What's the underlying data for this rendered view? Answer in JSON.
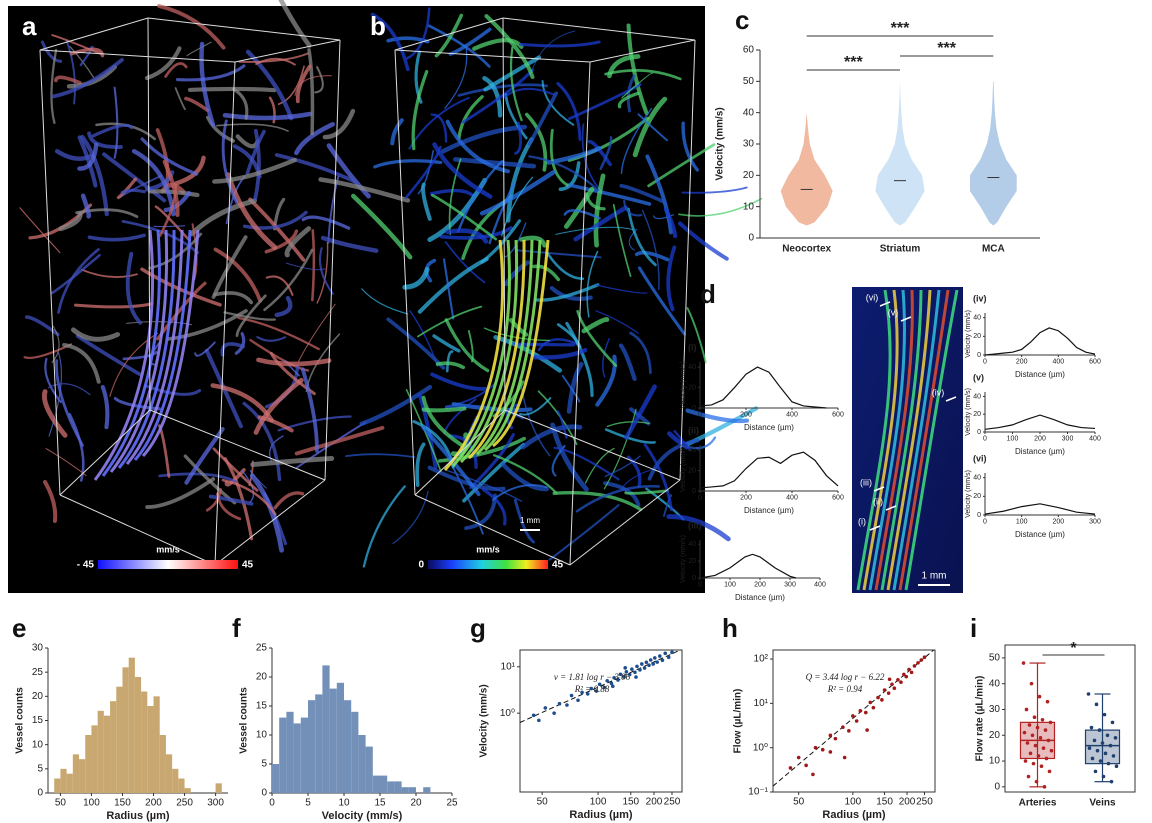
{
  "panel_labels": [
    "a",
    "b",
    "c",
    "d",
    "e",
    "f",
    "g",
    "h",
    "i"
  ],
  "images": [
    {
      "colorbar": {
        "min_label": "- 45",
        "unit": "mm/s",
        "max_label": "45"
      }
    },
    {
      "colorbar": {
        "min_label": "0",
        "unit": "mm/s",
        "max_label": "45"
      },
      "scale_bar": "1 mm"
    },
    {
      "labels": [
        "(vi)",
        "(v)",
        "(iv)",
        "(iii)",
        "(ii)",
        "(i)"
      ],
      "scale_bar": "1 mm"
    }
  ],
  "chart_data": [
    {
      "type": "violin",
      "y_label": "Velocity (mm/s)",
      "categories": [
        "Neocortex",
        "Striatum",
        "MCA"
      ],
      "colors": [
        "#f0b9a0",
        "#cfe3f6",
        "#b3cde8"
      ],
      "medians": [
        15.5,
        18.3,
        19.3
      ],
      "density_y": [
        4,
        5,
        10,
        15,
        20,
        25,
        30,
        35,
        40,
        45,
        50
      ],
      "densities": [
        [
          0,
          0.3,
          0.8,
          1,
          0.7,
          0.3,
          0.12,
          0.05,
          0,
          0,
          0
        ],
        [
          0,
          0.2,
          0.6,
          0.95,
          0.85,
          0.45,
          0.2,
          0.1,
          0.05,
          0.02,
          0
        ],
        [
          0,
          0.15,
          0.5,
          0.9,
          0.9,
          0.5,
          0.25,
          0.12,
          0.06,
          0.03,
          0.01
        ]
      ],
      "significance": [
        "***",
        "***",
        "***"
      ],
      "ylim": [
        0,
        60
      ],
      "yticks": [
        0,
        10,
        20,
        30,
        40,
        50,
        60
      ]
    },
    {
      "type": "line",
      "title": "(i)",
      "y_label": "Velocity (mm/s)",
      "x_label": "Distance (µm)",
      "x": [
        0,
        50,
        100,
        150,
        200,
        250,
        300,
        350,
        400,
        450,
        500,
        550
      ],
      "values": [
        2,
        3,
        8,
        20,
        33,
        40,
        35,
        20,
        6,
        2,
        1,
        0
      ],
      "xlim": [
        0,
        600
      ],
      "xticks": [
        0,
        200,
        400,
        600
      ],
      "ylim": [
        0,
        45
      ],
      "yticks": [
        0,
        20,
        40
      ]
    },
    {
      "type": "line",
      "title": "(ii)",
      "y_label": "Velocity (mm/s)",
      "x_label": "Distance (µm)",
      "x": [
        0,
        50,
        100,
        150,
        200,
        250,
        300,
        350,
        400,
        450,
        500,
        550,
        600
      ],
      "values": [
        3,
        4,
        5,
        10,
        22,
        32,
        33,
        27,
        35,
        38,
        30,
        15,
        5
      ],
      "xlim": [
        0,
        600
      ],
      "xticks": [
        0,
        200,
        400,
        600
      ],
      "ylim": [
        0,
        45
      ],
      "yticks": [
        0,
        20,
        40
      ]
    },
    {
      "type": "line",
      "title": "(iii)",
      "y_label": "Velocity (mm/s)",
      "x_label": "Distance (µm)",
      "x": [
        0,
        50,
        100,
        150,
        175,
        200,
        250,
        300,
        320
      ],
      "values": [
        0,
        3,
        12,
        25,
        28,
        25,
        12,
        2,
        0
      ],
      "xlim": [
        0,
        400
      ],
      "xticks": [
        0,
        100,
        200,
        300,
        400
      ],
      "ylim": [
        0,
        45
      ],
      "yticks": [
        0,
        20,
        40
      ]
    },
    {
      "type": "line",
      "title": "(iv)",
      "y_label": "Velocity (mm/s)",
      "x_label": "Distance (µm)",
      "x": [
        0,
        50,
        100,
        150,
        200,
        250,
        300,
        350,
        400,
        450,
        500,
        550,
        600
      ],
      "values": [
        0,
        1,
        2,
        3,
        6,
        14,
        24,
        29,
        26,
        18,
        8,
        3,
        1
      ],
      "xlim": [
        0,
        600
      ],
      "xticks": [
        0,
        200,
        400,
        600
      ],
      "ylim": [
        0,
        45
      ],
      "yticks": [
        0,
        20,
        40
      ]
    },
    {
      "type": "line",
      "title": "(v)",
      "y_label": "Velocity (mm/s)",
      "x_label": "Distance (µm)",
      "x": [
        0,
        50,
        100,
        150,
        200,
        250,
        300,
        350,
        400
      ],
      "values": [
        3,
        5,
        8,
        14,
        19,
        14,
        8,
        5,
        4
      ],
      "xlim": [
        0,
        400
      ],
      "xticks": [
        0,
        100,
        200,
        300,
        400
      ],
      "ylim": [
        0,
        45
      ],
      "yticks": [
        0,
        20,
        40
      ]
    },
    {
      "type": "line",
      "title": "(vi)",
      "y_label": "Velocity (mm/s)",
      "x_label": "Distance (µm)",
      "x": [
        0,
        50,
        100,
        150,
        200,
        250,
        300
      ],
      "values": [
        1,
        4,
        9,
        12,
        8,
        3,
        1
      ],
      "xlim": [
        0,
        300
      ],
      "xticks": [
        0,
        100,
        200,
        300
      ],
      "ylim": [
        0,
        45
      ],
      "yticks": [
        0,
        20,
        40
      ]
    },
    {
      "type": "histogram",
      "y_label": "Vessel counts",
      "x_label": "Radius (µm)",
      "color": "#c8a870",
      "bins": [
        40,
        50,
        60,
        70,
        80,
        90,
        100,
        110,
        120,
        130,
        140,
        150,
        160,
        170,
        180,
        190,
        200,
        210,
        220,
        230,
        240,
        250,
        260,
        270,
        280,
        290,
        300,
        310
      ],
      "values": [
        3,
        5,
        4,
        8,
        7,
        12,
        14,
        17,
        16,
        19,
        22,
        26,
        28,
        24,
        21,
        18,
        20,
        12,
        8,
        5,
        3,
        1,
        0,
        0,
        0,
        0,
        2
      ],
      "xlim": [
        30,
        320
      ],
      "xticks": [
        50,
        100,
        150,
        200,
        250,
        300
      ],
      "ylim": [
        0,
        30
      ],
      "yticks": [
        0,
        5,
        10,
        15,
        20,
        25,
        30
      ]
    },
    {
      "type": "histogram",
      "y_label": "Vessel counts",
      "x_label": "Velocity (mm/s)",
      "color": "#7390b8",
      "bins": [
        0,
        1,
        2,
        3,
        4,
        5,
        6,
        7,
        8,
        9,
        10,
        11,
        12,
        13,
        14,
        15,
        16,
        17,
        18,
        19,
        20,
        21,
        22
      ],
      "values": [
        5,
        13,
        14,
        12,
        13,
        16,
        17,
        22,
        18,
        19,
        16,
        14,
        10,
        8,
        3,
        3,
        2,
        2,
        1,
        1,
        0,
        1
      ],
      "xlim": [
        0,
        25
      ],
      "xticks": [
        0,
        5,
        10,
        15,
        20,
        25
      ],
      "ylim": [
        0,
        25
      ],
      "yticks": [
        0,
        5,
        10,
        15,
        20,
        25
      ]
    },
    {
      "type": "scatter",
      "y_label": "Velocity (mm/s)",
      "x_label": "Radius (µm)",
      "color": "#1f4e8c",
      "log_x": true,
      "log_y": true,
      "equation": [
        "ν = 1.81 log r − 3.06",
        "R² = 0.88"
      ],
      "fit": {
        "slope": 1.81,
        "intercept": -3.06
      },
      "x": [
        45,
        48,
        52,
        58,
        62,
        68,
        72,
        78,
        82,
        88,
        92,
        98,
        102,
        108,
        112,
        118,
        122,
        128,
        132,
        138,
        142,
        148,
        152,
        158,
        162,
        168,
        172,
        178,
        182,
        188,
        192,
        198,
        202,
        208,
        215,
        222,
        230,
        240,
        250,
        160,
        140,
        120
      ],
      "values": [
        0.9,
        0.7,
        1.3,
        1.0,
        1.6,
        1.5,
        2.4,
        1.9,
        2.8,
        2.6,
        3.4,
        3.0,
        4.2,
        3.6,
        5.0,
        4.4,
        5.8,
        5.2,
        6.9,
        6.0,
        7.8,
        6.8,
        8.9,
        7.6,
        10.2,
        8.6,
        11.5,
        9.4,
        12.5,
        10.8,
        14.0,
        11.5,
        15.5,
        12.6,
        17.0,
        13.8,
        19.5,
        16.0,
        20.5,
        6.0,
        9.5,
        3.8
      ],
      "xlim": [
        38,
        283
      ],
      "xticks": [
        50,
        100,
        150,
        200,
        250
      ],
      "ylim": [
        0.02,
        23
      ],
      "yticks": [
        {
          "value": 1,
          "label": "10⁰"
        },
        {
          "value": 10,
          "label": "10¹"
        }
      ]
    },
    {
      "type": "scatter",
      "y_label": "Flow (µL/min)",
      "x_label": "Radius (µm)",
      "color": "#a01818",
      "log_x": true,
      "log_y": true,
      "equation": [
        "Q = 3.44 log r − 6.22",
        "R² = 0.94"
      ],
      "fit": {
        "slope": 3.44,
        "intercept": -6.22
      },
      "x": [
        45,
        50,
        55,
        62,
        68,
        75,
        80,
        88,
        95,
        100,
        105,
        110,
        118,
        125,
        130,
        138,
        145,
        150,
        158,
        165,
        170,
        178,
        185,
        192,
        198,
        205,
        212,
        220,
        230,
        240,
        250,
        90,
        120,
        160,
        60,
        75
      ],
      "values": [
        0.35,
        0.6,
        0.4,
        1.0,
        0.9,
        1.9,
        1.6,
        2.9,
        2.4,
        5.2,
        4.0,
        6.8,
        6.2,
        10.5,
        8.0,
        13.5,
        12.0,
        20,
        17,
        27,
        22,
        34,
        30,
        45,
        40,
        58,
        50,
        70,
        82,
        95,
        110,
        0.6,
        2.5,
        35,
        0.25,
        0.8
      ],
      "xlim": [
        36,
        286
      ],
      "xticks": [
        50,
        100,
        150,
        200,
        250
      ],
      "ylim": [
        0.1,
        160
      ],
      "yticks": [
        {
          "value": 0.1,
          "label": "10⁻¹"
        },
        {
          "value": 1,
          "label": "10⁰"
        },
        {
          "value": 10,
          "label": "10¹"
        },
        {
          "value": 100,
          "label": "10²"
        }
      ]
    },
    {
      "type": "box",
      "y_label": "Flow rate (µL/min)",
      "categories": [
        "Arteries",
        "Veins"
      ],
      "colors": [
        "#b22222",
        "#1f3f6e"
      ],
      "boxes": [
        {
          "min": 0,
          "q1": 11,
          "median": 18,
          "q3": 25,
          "max": 48
        },
        {
          "min": 2,
          "q1": 9,
          "median": 16,
          "q3": 22,
          "max": 36
        }
      ],
      "points": [
        [
          48,
          40,
          35,
          33,
          30,
          27,
          26,
          25,
          24,
          23,
          22,
          21,
          20,
          19,
          18,
          17,
          16,
          15,
          14,
          13,
          12,
          11,
          10,
          9,
          8,
          6,
          4,
          2,
          0
        ],
        [
          36,
          32,
          28,
          25,
          23,
          22,
          20,
          19,
          18,
          17,
          16,
          15,
          14,
          13,
          12,
          11,
          10,
          9,
          8,
          6,
          4,
          2
        ]
      ],
      "significance": "*",
      "ylim": [
        -2,
        55
      ],
      "yticks": [
        0,
        10,
        20,
        30,
        40,
        50
      ]
    }
  ]
}
